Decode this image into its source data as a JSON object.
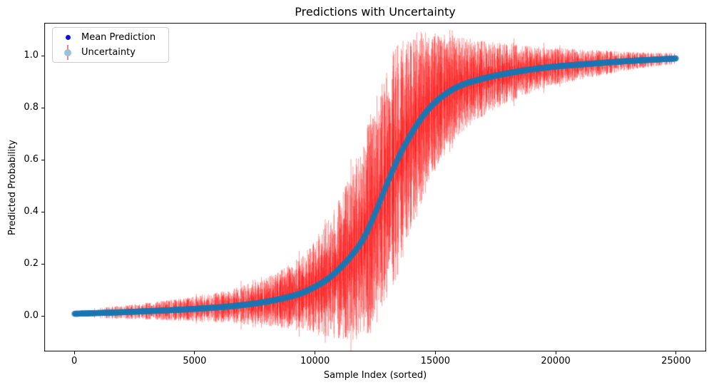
{
  "chart": {
    "title": "Predictions with Uncertainty",
    "xlabel": "Sample Index (sorted)",
    "ylabel": "Predicted Probability"
  },
  "legend": {
    "items": [
      {
        "label": "Mean Prediction",
        "marker": "blue-dot"
      },
      {
        "label": "Uncertainty",
        "marker": "lightblue-dot-with-red-errorbar"
      }
    ]
  },
  "chart_data": {
    "type": "scatter",
    "title": "Predictions with Uncertainty",
    "xlabel": "Sample Index (sorted)",
    "ylabel": "Predicted Probability",
    "n_samples": 25000,
    "xlim": [
      -1250,
      26250
    ],
    "ylim": [
      -0.137,
      1.127
    ],
    "x_ticks": [
      0,
      5000,
      10000,
      15000,
      20000,
      25000
    ],
    "x_tick_labels": [
      "0",
      "5000",
      "10000",
      "15000",
      "20000",
      "25000"
    ],
    "y_ticks": [
      0.0,
      0.2,
      0.4,
      0.6,
      0.8,
      1.0
    ],
    "y_tick_labels": [
      "0.0",
      "0.2",
      "0.4",
      "0.6",
      "0.8",
      "1.0"
    ],
    "grid": false,
    "legend_position": "upper left",
    "series": [
      {
        "name": "Mean Prediction",
        "style": "small blue dots, sorted sigmoid-shaped curve",
        "color": "#0000ff",
        "curve_control_points": [
          [
            0,
            0.008
          ],
          [
            1000,
            0.011
          ],
          [
            2000,
            0.014
          ],
          [
            3000,
            0.018
          ],
          [
            4000,
            0.022
          ],
          [
            5000,
            0.027
          ],
          [
            6000,
            0.033
          ],
          [
            7000,
            0.042
          ],
          [
            8000,
            0.055
          ],
          [
            9000,
            0.075
          ],
          [
            9500,
            0.09
          ],
          [
            10000,
            0.112
          ],
          [
            10500,
            0.14
          ],
          [
            11000,
            0.18
          ],
          [
            11500,
            0.23
          ],
          [
            12000,
            0.295
          ],
          [
            12500,
            0.395
          ],
          [
            13000,
            0.51
          ],
          [
            13500,
            0.615
          ],
          [
            14000,
            0.7
          ],
          [
            14500,
            0.77
          ],
          [
            15000,
            0.822
          ],
          [
            15500,
            0.858
          ],
          [
            16000,
            0.884
          ],
          [
            17000,
            0.913
          ],
          [
            18000,
            0.933
          ],
          [
            19000,
            0.948
          ],
          [
            20000,
            0.959
          ],
          [
            21000,
            0.9665
          ],
          [
            22000,
            0.9735
          ],
          [
            23000,
            0.98
          ],
          [
            24000,
            0.985
          ],
          [
            25000,
            0.99
          ]
        ]
      },
      {
        "name": "Uncertainty",
        "style": "red vertical error bars with translucent tab:blue round markers",
        "marker_color": "#1f77b4",
        "marker_alpha": 0.3,
        "bar_color": "#ff0000",
        "bar_alpha": 0.4,
        "halflength_model": "halflen = 4*p*(1-p) * (0.06 + 0.40*uniform)",
        "halflength_base": 0.06,
        "halflength_spread": 0.4,
        "spike_probability": 0.04,
        "spike_scale": 1.3,
        "min_visible_halflength": 0.018,
        "envelope_max_y": 1.07,
        "envelope_min_y": -0.08
      }
    ],
    "colors": {
      "mean_point": "#0000ff",
      "uncertainty_marker": "#1f77b4",
      "error_bar": "#ff0000",
      "spine": "#000000",
      "text": "#000000",
      "legend_border": "#cccccc",
      "background": "#ffffff"
    }
  }
}
